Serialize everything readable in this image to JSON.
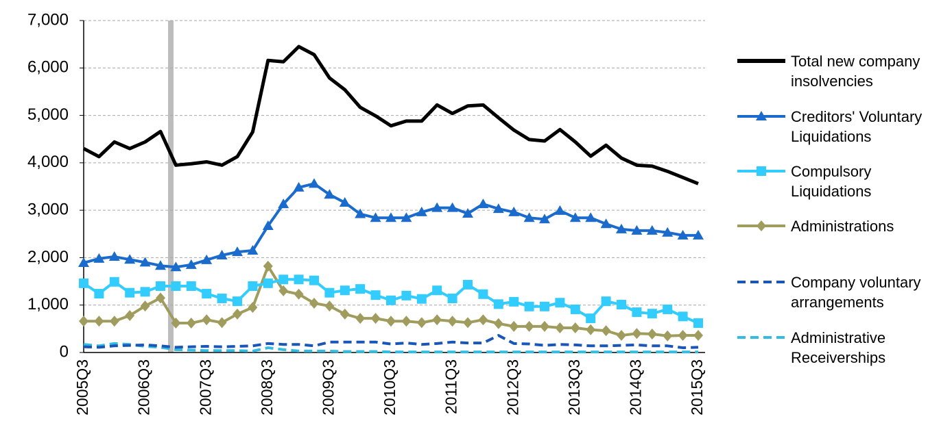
{
  "chart_data": {
    "type": "line",
    "categories": [
      "2005Q3",
      null,
      null,
      null,
      "2006Q3",
      null,
      null,
      null,
      "2007Q3",
      null,
      null,
      null,
      "2008Q3",
      null,
      null,
      null,
      "2009Q3",
      null,
      null,
      null,
      "2010Q3",
      null,
      null,
      null,
      "2011Q3",
      null,
      null,
      null,
      "2012Q3",
      null,
      null,
      null,
      "2013Q3",
      null,
      null,
      null,
      "2014Q3",
      null,
      null,
      null,
      "2015Q3"
    ],
    "ylim": [
      0,
      7000
    ],
    "yticks": [
      {
        "value": 0,
        "label": "0"
      },
      {
        "value": 1000,
        "label": "1,000"
      },
      {
        "value": 2000,
        "label": "2,000"
      },
      {
        "value": 3000,
        "label": "3,000"
      },
      {
        "value": 4000,
        "label": "4,000"
      },
      {
        "value": 5000,
        "label": "5,000"
      },
      {
        "value": 6000,
        "label": "6,000"
      },
      {
        "value": 7000,
        "label": "7,000"
      }
    ],
    "grid": true,
    "legend": "right",
    "series": [
      {
        "name": "Total new company insolvencies",
        "color": "#000000",
        "marker": "none",
        "dashed": false,
        "values": [
          4300,
          4130,
          4440,
          4300,
          4440,
          4660,
          3950,
          3980,
          4020,
          3950,
          4130,
          4650,
          6160,
          6130,
          6450,
          6280,
          5790,
          5540,
          5170,
          4990,
          4780,
          4880,
          4880,
          5220,
          5040,
          5200,
          5220,
          4950,
          4690,
          4490,
          4460,
          4700,
          4440,
          4140,
          4370,
          4100,
          3950,
          3930,
          3820,
          3690,
          3560
        ]
      },
      {
        "name": "Creditors' Voluntary Liquidations",
        "color": "#1A6BCB",
        "marker": "triangle",
        "dashed": false,
        "values": [
          1890,
          1980,
          2020,
          1960,
          1900,
          1830,
          1800,
          1850,
          1950,
          2050,
          2120,
          2150,
          2670,
          3130,
          3480,
          3560,
          3330,
          3160,
          2920,
          2840,
          2840,
          2840,
          2960,
          3050,
          3050,
          2930,
          3130,
          3030,
          2960,
          2840,
          2810,
          2990,
          2840,
          2840,
          2710,
          2600,
          2570,
          2570,
          2530,
          2470,
          2470
        ]
      },
      {
        "name": "Compulsory Liquidations",
        "color": "#33CCFF",
        "marker": "square",
        "dashed": false,
        "values": [
          1460,
          1240,
          1490,
          1260,
          1280,
          1400,
          1400,
          1400,
          1240,
          1140,
          1080,
          1400,
          1460,
          1540,
          1540,
          1520,
          1260,
          1310,
          1340,
          1210,
          1100,
          1200,
          1130,
          1310,
          1140,
          1430,
          1230,
          1020,
          1070,
          970,
          970,
          1050,
          910,
          720,
          1080,
          1010,
          850,
          820,
          910,
          760,
          620
        ]
      },
      {
        "name": "Administrations",
        "color": "#A09C5E",
        "marker": "diamond",
        "dashed": false,
        "values": [
          660,
          660,
          660,
          780,
          980,
          1150,
          620,
          620,
          690,
          630,
          810,
          950,
          1820,
          1300,
          1230,
          1040,
          980,
          810,
          720,
          720,
          660,
          660,
          630,
          690,
          660,
          630,
          690,
          610,
          550,
          550,
          550,
          520,
          520,
          480,
          460,
          360,
          400,
          390,
          350,
          360,
          360
        ]
      },
      {
        "name": "Company voluntary arrangements",
        "color": "#1A55B8",
        "marker": "none",
        "dashed": true,
        "values": [
          120,
          110,
          140,
          150,
          160,
          140,
          110,
          120,
          130,
          120,
          130,
          140,
          190,
          170,
          170,
          140,
          220,
          220,
          220,
          220,
          180,
          200,
          170,
          190,
          220,
          200,
          200,
          360,
          190,
          180,
          150,
          170,
          160,
          140,
          140,
          150,
          160,
          140,
          140,
          100,
          110
        ]
      },
      {
        "name": "Administrative Receiverships",
        "color": "#33BBE0",
        "marker": "none",
        "dashed": true,
        "values": [
          170,
          140,
          190,
          170,
          130,
          110,
          60,
          50,
          40,
          40,
          40,
          30,
          100,
          60,
          30,
          30,
          30,
          20,
          20,
          20,
          10,
          10,
          10,
          10,
          10,
          10,
          10,
          10,
          10,
          10,
          10,
          10,
          10,
          10,
          10,
          10,
          10,
          10,
          10,
          10,
          10
        ]
      }
    ]
  }
}
